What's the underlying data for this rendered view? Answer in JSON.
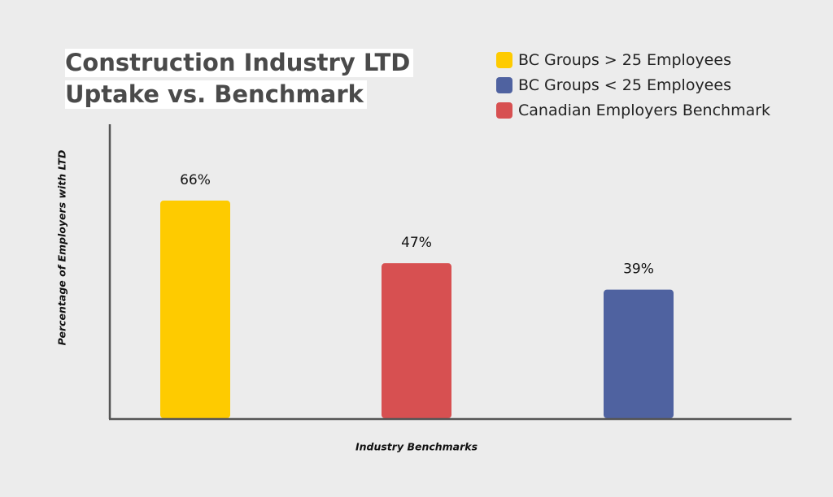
{
  "chart_data": {
    "type": "bar",
    "title_lines": [
      "Construction Industry LTD",
      "Uptake vs. Benchmark"
    ],
    "xlabel": "Industry Benchmarks",
    "ylabel": "Percentage of Employers with LTD",
    "ylim": [
      0,
      80
    ],
    "grid": false,
    "legend_position": "top-right",
    "categories": [
      "BC Groups > 25 Employees",
      "Canadian Employers Benchmark",
      "BC Groups < 25 Employees"
    ],
    "values": [
      66,
      47,
      39
    ],
    "value_labels": [
      "66%",
      "47%",
      "39%"
    ],
    "colors": [
      "#fecb00",
      "#d75051",
      "#4f62a0"
    ],
    "legend": [
      {
        "label": "BC Groups > 25 Employees",
        "color": "#fecb00"
      },
      {
        "label": "BC Groups < 25 Employees",
        "color": "#4f62a0"
      },
      {
        "label": "Canadian Employers Benchmark",
        "color": "#d75051"
      }
    ]
  }
}
